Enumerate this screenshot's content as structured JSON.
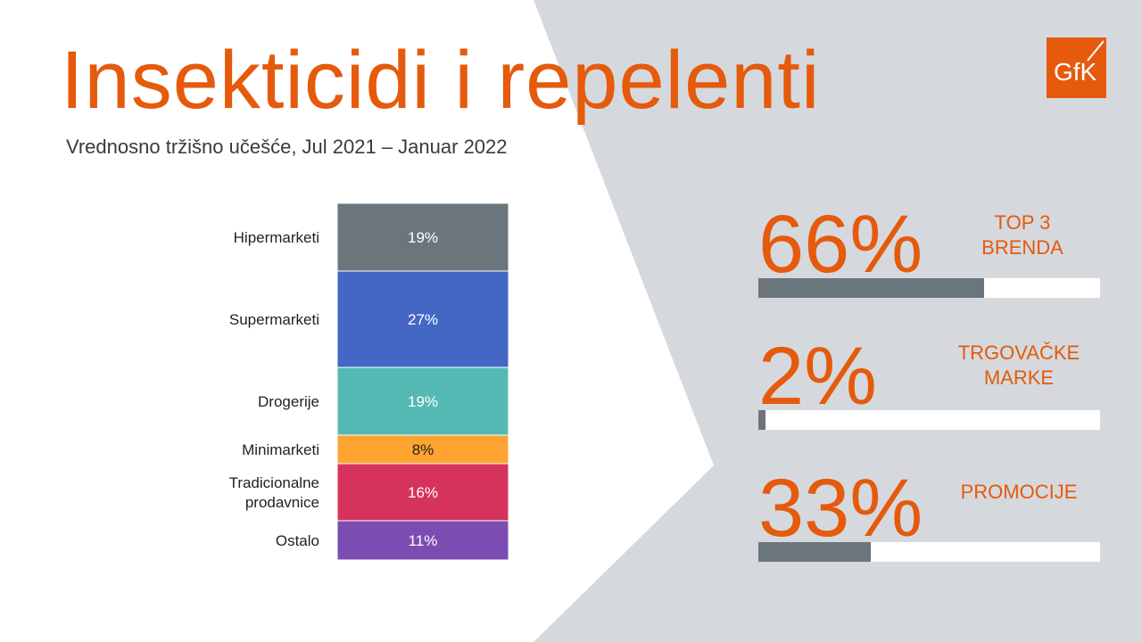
{
  "header": {
    "title": "Insekticidi i repelenti",
    "subtitle": "Vrednosno tržišno učešće, Jul 2021 – Januar 2022"
  },
  "logo": {
    "text": "GfK",
    "color": "#e55a0c"
  },
  "colors": {
    "accent": "#e55a0c",
    "panel": "#d5d9dd",
    "bar_fill": "#6b757c"
  },
  "chart_data": {
    "type": "bar",
    "stacked": true,
    "orientation": "vertical",
    "unit": "%",
    "categories": [
      "Hipermarketi",
      "Supermarketi",
      "Drogerije",
      "Minimarketi",
      "Tradicionalne prodavnice",
      "Ostalo"
    ],
    "values": [
      19,
      27,
      19,
      8,
      16,
      11
    ],
    "labels": [
      "19%",
      "27%",
      "19%",
      "8%",
      "16%",
      "11%"
    ],
    "colors": [
      "#6b757c",
      "#4467c4",
      "#55b9b3",
      "#ffa431",
      "#d6335c",
      "#7b4db3"
    ],
    "label_colors": [
      "#ffffff",
      "#ffffff",
      "#ffffff",
      "#222222",
      "#ffffff",
      "#ffffff"
    ]
  },
  "kpis": [
    {
      "value_text": "66%",
      "value": 66,
      "caption": "TOP 3\nBRENDA"
    },
    {
      "value_text": "2%",
      "value": 2,
      "caption": "TRGOVAČKE\nMARKE"
    },
    {
      "value_text": "33%",
      "value": 33,
      "caption": "PROMOCIJE"
    }
  ]
}
